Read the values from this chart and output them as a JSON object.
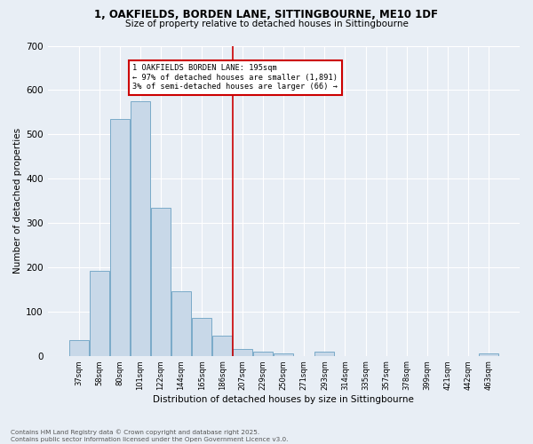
{
  "title": "1, OAKFIELDS, BORDEN LANE, SITTINGBOURNE, ME10 1DF",
  "subtitle": "Size of property relative to detached houses in Sittingbourne",
  "xlabel": "Distribution of detached houses by size in Sittingbourne",
  "ylabel": "Number of detached properties",
  "categories": [
    "37sqm",
    "58sqm",
    "80sqm",
    "101sqm",
    "122sqm",
    "144sqm",
    "165sqm",
    "186sqm",
    "207sqm",
    "229sqm",
    "250sqm",
    "271sqm",
    "293sqm",
    "314sqm",
    "335sqm",
    "357sqm",
    "378sqm",
    "399sqm",
    "421sqm",
    "442sqm",
    "463sqm"
  ],
  "bar_values": [
    35,
    192,
    535,
    575,
    335,
    145,
    85,
    45,
    15,
    10,
    5,
    0,
    10,
    0,
    0,
    0,
    0,
    0,
    0,
    0,
    5
  ],
  "bar_color": "#c8d8e8",
  "bar_edge_color": "#7aaac8",
  "vline_index": 7.5,
  "vline_color": "#cc0000",
  "annotation_title": "1 OAKFIELDS BORDEN LANE: 195sqm",
  "annotation_line1": "← 97% of detached houses are smaller (1,891)",
  "annotation_line2": "3% of semi-detached houses are larger (66) →",
  "annotation_box_color": "#cc0000",
  "background_color": "#e8eef5",
  "footer_line1": "Contains HM Land Registry data © Crown copyright and database right 2025.",
  "footer_line2": "Contains public sector information licensed under the Open Government Licence v3.0.",
  "ylim": [
    0,
    700
  ],
  "yticks": [
    0,
    100,
    200,
    300,
    400,
    500,
    600,
    700
  ]
}
